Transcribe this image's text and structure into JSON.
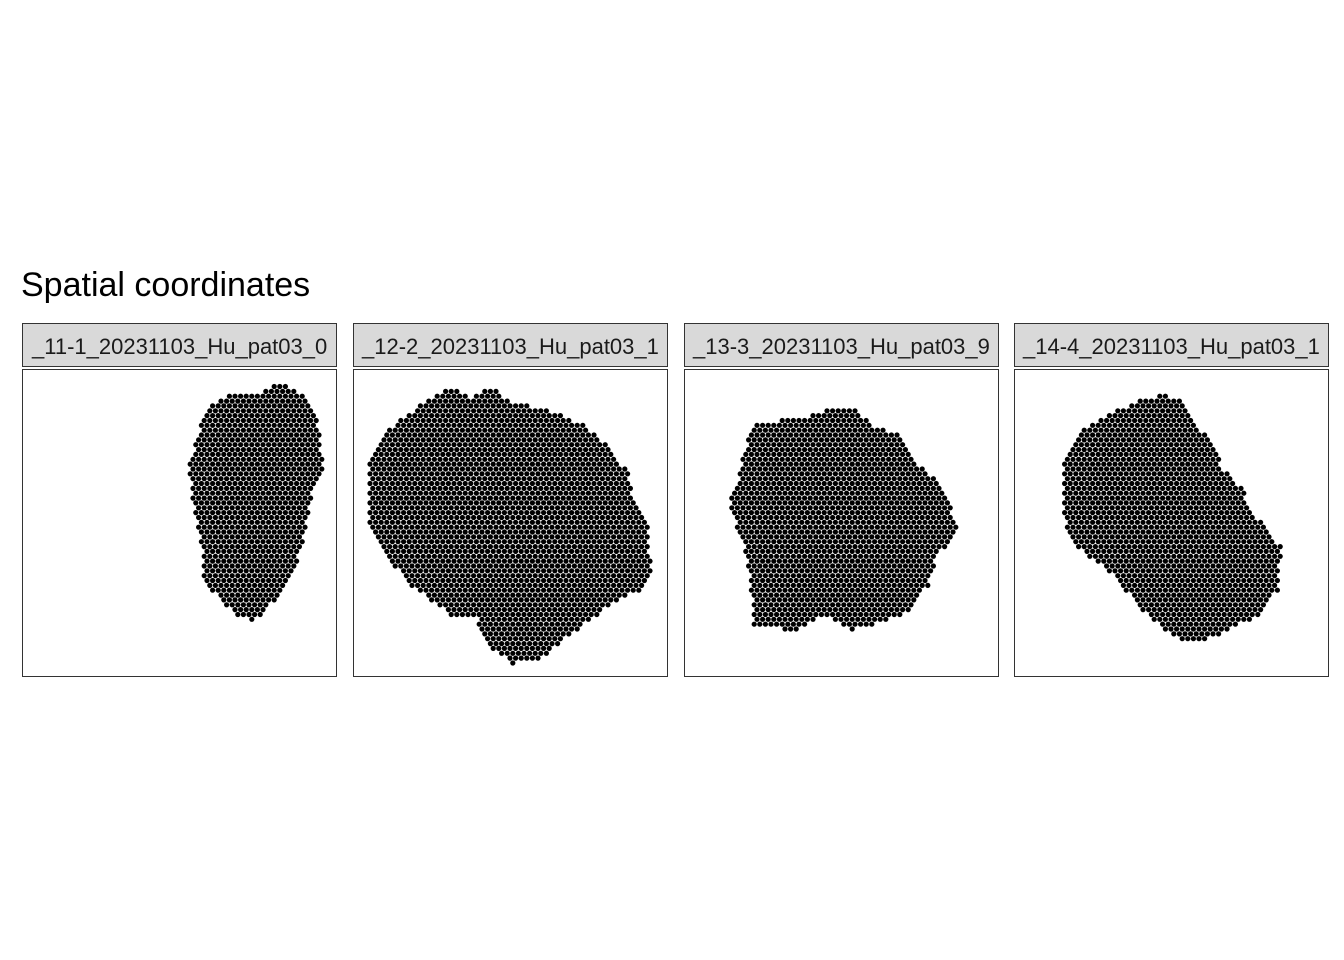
{
  "chart_data": {
    "type": "scatter",
    "title": "Spatial coordinates",
    "point_color": "#000000",
    "strip_fill": "#d9d9d9",
    "grid": false,
    "axes_shown": false,
    "facets": [
      {
        "label": "_11-1_20231103_Hu_pat03_0",
        "region": [
          [
            0.77,
            0.07
          ],
          [
            0.83,
            0.04
          ],
          [
            0.9,
            0.08
          ],
          [
            0.94,
            0.16
          ],
          [
            0.96,
            0.33
          ],
          [
            0.92,
            0.42
          ],
          [
            0.9,
            0.54
          ],
          [
            0.86,
            0.68
          ],
          [
            0.8,
            0.76
          ],
          [
            0.74,
            0.82
          ],
          [
            0.68,
            0.8
          ],
          [
            0.58,
            0.7
          ],
          [
            0.57,
            0.58
          ],
          [
            0.54,
            0.4
          ],
          [
            0.53,
            0.32
          ],
          [
            0.56,
            0.2
          ],
          [
            0.6,
            0.12
          ],
          [
            0.66,
            0.08
          ]
        ]
      },
      {
        "label": "_12-2_20231103_Hu_pat03_1",
        "region": [
          [
            0.26,
            0.08
          ],
          [
            0.32,
            0.06
          ],
          [
            0.37,
            0.09
          ],
          [
            0.44,
            0.06
          ],
          [
            0.5,
            0.1
          ],
          [
            0.58,
            0.12
          ],
          [
            0.64,
            0.14
          ],
          [
            0.74,
            0.18
          ],
          [
            0.82,
            0.26
          ],
          [
            0.88,
            0.34
          ],
          [
            0.89,
            0.42
          ],
          [
            0.94,
            0.52
          ],
          [
            0.95,
            0.65
          ],
          [
            0.91,
            0.72
          ],
          [
            0.8,
            0.78
          ],
          [
            0.7,
            0.86
          ],
          [
            0.6,
            0.94
          ],
          [
            0.51,
            0.96
          ],
          [
            0.43,
            0.91
          ],
          [
            0.39,
            0.81
          ],
          [
            0.31,
            0.8
          ],
          [
            0.18,
            0.7
          ],
          [
            0.11,
            0.62
          ],
          [
            0.05,
            0.5
          ],
          [
            0.05,
            0.28
          ],
          [
            0.1,
            0.2
          ],
          [
            0.18,
            0.14
          ]
        ]
      },
      {
        "label": "_13-3_20231103_Hu_pat03_9",
        "region": [
          [
            0.22,
            0.18
          ],
          [
            0.28,
            0.17
          ],
          [
            0.4,
            0.15
          ],
          [
            0.49,
            0.12
          ],
          [
            0.54,
            0.12
          ],
          [
            0.6,
            0.18
          ],
          [
            0.7,
            0.22
          ],
          [
            0.72,
            0.28
          ],
          [
            0.8,
            0.36
          ],
          [
            0.84,
            0.42
          ],
          [
            0.87,
            0.52
          ],
          [
            0.8,
            0.62
          ],
          [
            0.78,
            0.7
          ],
          [
            0.7,
            0.8
          ],
          [
            0.54,
            0.85
          ],
          [
            0.45,
            0.8
          ],
          [
            0.36,
            0.85
          ],
          [
            0.22,
            0.84
          ],
          [
            0.21,
            0.7
          ],
          [
            0.18,
            0.55
          ],
          [
            0.14,
            0.44
          ],
          [
            0.17,
            0.36
          ],
          [
            0.19,
            0.26
          ]
        ]
      },
      {
        "label": "_14-4_20231103_Hu_pat03_1",
        "region": [
          [
            0.4,
            0.1
          ],
          [
            0.48,
            0.08
          ],
          [
            0.54,
            0.1
          ],
          [
            0.57,
            0.18
          ],
          [
            0.6,
            0.2
          ],
          [
            0.64,
            0.26
          ],
          [
            0.66,
            0.32
          ],
          [
            0.72,
            0.38
          ],
          [
            0.76,
            0.46
          ],
          [
            0.8,
            0.52
          ],
          [
            0.85,
            0.58
          ],
          [
            0.84,
            0.72
          ],
          [
            0.78,
            0.8
          ],
          [
            0.66,
            0.86
          ],
          [
            0.58,
            0.89
          ],
          [
            0.52,
            0.88
          ],
          [
            0.44,
            0.82
          ],
          [
            0.37,
            0.74
          ],
          [
            0.3,
            0.66
          ],
          [
            0.2,
            0.58
          ],
          [
            0.16,
            0.5
          ],
          [
            0.15,
            0.32
          ],
          [
            0.2,
            0.2
          ],
          [
            0.3,
            0.14
          ]
        ]
      }
    ]
  }
}
